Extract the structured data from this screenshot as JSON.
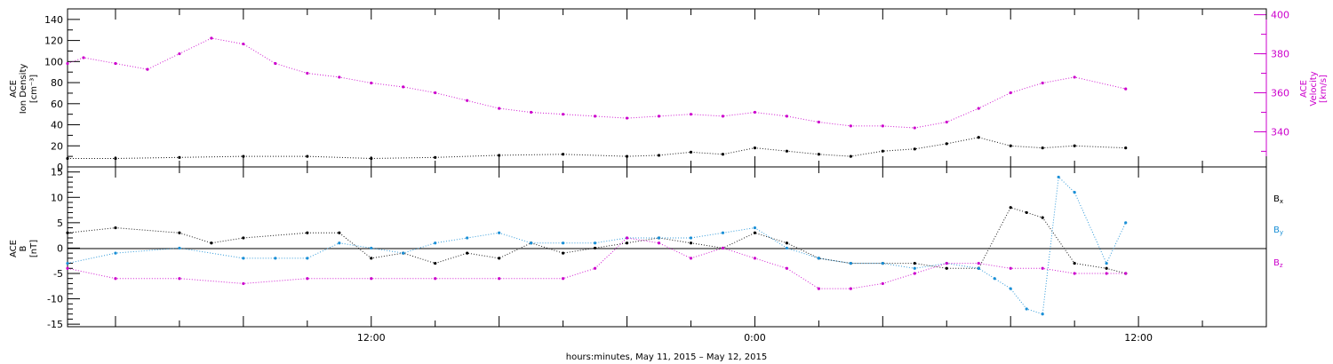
{
  "xaxis": {
    "label": "hours:minutes, May 11, 2015 – May 12, 2015",
    "ticks": [
      "12:00",
      "0:00",
      "12:00"
    ],
    "range_hours": [
      2.5,
      40.0
    ],
    "tick_hours": [
      12,
      24,
      36
    ]
  },
  "colors": {
    "black": "#000000",
    "magenta": "#cc00cc",
    "blue": "#1a8fd6"
  },
  "chart_data": [
    {
      "type": "scatter",
      "panel": "top",
      "left_axis": {
        "label_line1": "ACE",
        "label_line2": "Ion Density",
        "label_line3": "[cm⁻³]",
        "range": [
          0,
          150
        ],
        "ticks": [
          "0",
          "20",
          "40",
          "60",
          "80",
          "100",
          "120",
          "140"
        ],
        "tick_values": [
          0,
          20,
          40,
          60,
          80,
          100,
          120,
          140
        ]
      },
      "right_axis": {
        "label_line1": "ACE",
        "label_line2": "Velocity",
        "label_line3": "[km/s]",
        "range": [
          322,
          403
        ],
        "ticks": [
          "340",
          "360",
          "380",
          "400"
        ],
        "tick_values": [
          340,
          360,
          380,
          400
        ]
      },
      "series": [
        {
          "quantity": "density",
          "axis": "left",
          "color": "#000000",
          "x": [
            2.5,
            4,
            6,
            8,
            10,
            12,
            14,
            16,
            18,
            20,
            21,
            22,
            23,
            24,
            25,
            26,
            27,
            28,
            29,
            30,
            31,
            32,
            33,
            34,
            35.6
          ],
          "y": [
            8,
            8,
            9,
            10,
            10,
            8,
            9,
            11,
            12,
            10,
            11,
            14,
            12,
            18,
            15,
            12,
            10,
            15,
            17,
            22,
            28,
            20,
            18,
            20,
            18
          ]
        },
        {
          "quantity": "velocity",
          "axis": "right",
          "color": "#cc00cc",
          "x": [
            2.5,
            3,
            4,
            5,
            6,
            7,
            8,
            9,
            10,
            11,
            12,
            13,
            14,
            15,
            16,
            17,
            18,
            19,
            20,
            21,
            22,
            23,
            24,
            25,
            26,
            27,
            28,
            29,
            30,
            31,
            32,
            33,
            34,
            35.6
          ],
          "y": [
            375,
            378,
            375,
            372,
            380,
            388,
            385,
            375,
            370,
            368,
            365,
            363,
            360,
            356,
            352,
            350,
            349,
            348,
            347,
            348,
            349,
            348,
            350,
            348,
            345,
            343,
            343,
            342,
            345,
            352,
            360,
            365,
            368,
            362
          ]
        }
      ]
    },
    {
      "type": "scatter",
      "panel": "bottom",
      "left_axis": {
        "label_line1": "ACE",
        "label_line2": "B",
        "label_line3": "[nT]",
        "range": [
          -15.5,
          16
        ],
        "ticks": [
          "-15",
          "-10",
          "-5",
          "0",
          "5",
          "10",
          "15"
        ],
        "tick_values": [
          -15,
          -10,
          -5,
          0,
          5,
          10,
          15
        ]
      },
      "legend": {
        "placement": "right",
        "entries": [
          "Bx",
          "By",
          "Bz"
        ]
      },
      "series": [
        {
          "name": "Bx",
          "color": "#000000",
          "x": [
            2.5,
            4,
            6,
            7,
            8,
            10,
            11,
            12,
            13,
            14,
            15,
            16,
            17,
            18,
            19,
            20,
            21,
            22,
            23,
            24,
            25,
            26,
            27,
            28,
            29,
            30,
            31,
            32,
            32.5,
            33,
            34,
            35,
            35.6
          ],
          "y": [
            3,
            4,
            3,
            1,
            2,
            3,
            3,
            -2,
            -1,
            -3,
            -1,
            -2,
            1,
            -1,
            0,
            1,
            2,
            1,
            0,
            3,
            1,
            -2,
            -3,
            -3,
            -3,
            -4,
            -4,
            8,
            7,
            6,
            -3,
            -4,
            -5
          ]
        },
        {
          "name": "By",
          "color": "#1a8fd6",
          "x": [
            2.5,
            4,
            6,
            8,
            9,
            10,
            11,
            12,
            13,
            14,
            15,
            16,
            17,
            18,
            19,
            20,
            21,
            22,
            23,
            24,
            25,
            26,
            27,
            28,
            29,
            30,
            31,
            31.5,
            32,
            32.5,
            33,
            33.5,
            34,
            35,
            35.6
          ],
          "y": [
            -3,
            -1,
            0,
            -2,
            -2,
            -2,
            1,
            0,
            -1,
            1,
            2,
            3,
            1,
            1,
            1,
            2,
            2,
            2,
            3,
            4,
            0,
            -2,
            -3,
            -3,
            -4,
            -3,
            -4,
            -6,
            -8,
            -12,
            -13,
            14,
            11,
            -3,
            5
          ]
        },
        {
          "name": "Bz",
          "color": "#cc00cc",
          "x": [
            2.5,
            4,
            6,
            8,
            10,
            12,
            14,
            16,
            18,
            19,
            20,
            21,
            22,
            23,
            24,
            25,
            26,
            27,
            28,
            29,
            30,
            31,
            32,
            33,
            34,
            35,
            35.6
          ],
          "y": [
            -4,
            -6,
            -6,
            -7,
            -6,
            -6,
            -6,
            -6,
            -6,
            -4,
            2,
            1,
            -2,
            0,
            -2,
            -4,
            -8,
            -8,
            -7,
            -5,
            -3,
            -3,
            -4,
            -4,
            -5,
            -5,
            -5
          ]
        }
      ]
    }
  ]
}
